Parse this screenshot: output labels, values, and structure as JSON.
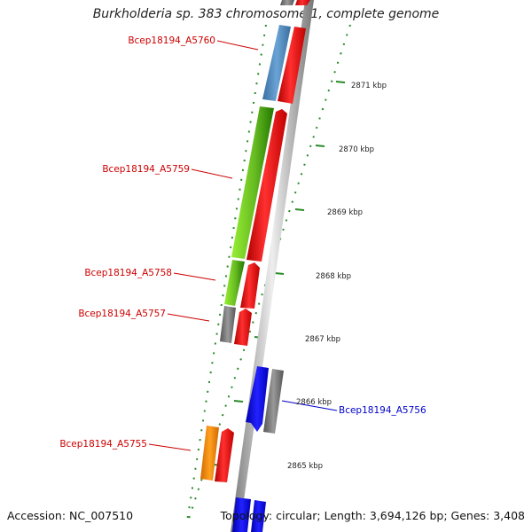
{
  "title": "Burkholderia sp. 383 chromosome 1, complete genome",
  "accession_text": "Accession: NC_007510",
  "summary_text": "Topology: circular; Length: 3,694,126 bp; Genes: 3,408",
  "scale_labels": [
    "2871 kbp",
    "2870 kbp",
    "2869 kbp",
    "2868 kbp",
    "2867 kbp",
    "2866 kbp",
    "2865 kbp"
  ],
  "genes": [
    {
      "label": "Bcep18194_A5760",
      "label_color": "#cc0000"
    },
    {
      "label": "Bcep18194_A5759",
      "label_color": "#cc0000"
    },
    {
      "label": "Bcep18194_A5758",
      "label_color": "#cc0000"
    },
    {
      "label": "Bcep18194_A5757",
      "label_color": "#cc0000"
    },
    {
      "label": "Bcep18194_A5756",
      "label_color": "#0000cc"
    },
    {
      "label": "Bcep18194_A5755",
      "label_color": "#cc0000"
    }
  ],
  "colors": {
    "cds": "#ff0000",
    "cds_reverse": "#0000ee",
    "steelblue": "#4682b4",
    "green_light": "#99ee33",
    "green_dark": "#339900",
    "gray": "#707070",
    "orange": "#ff8c00",
    "tick": "#2a8a2a",
    "backbone": "#999999"
  }
}
